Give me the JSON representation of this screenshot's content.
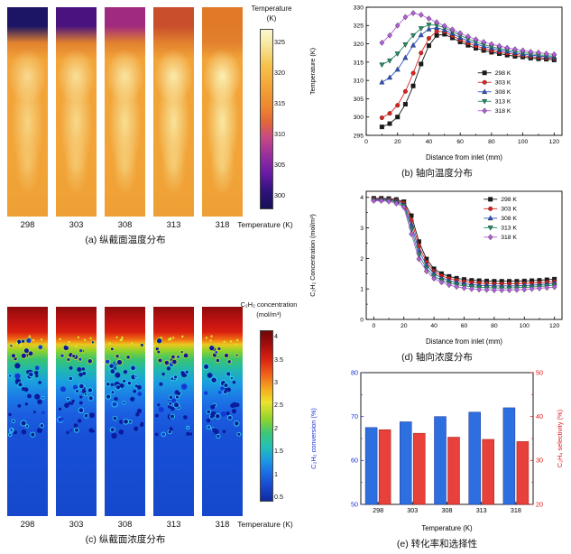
{
  "panel_a": {
    "caption": "(a) 纵截面温度分布",
    "case_labels": [
      "298",
      "303",
      "308",
      "313",
      "318"
    ],
    "bottom_axis_label": "Temperature (K)",
    "case_top_colors": [
      "#1c1464",
      "#4a127e",
      "#a02a7e",
      "#c84e2c",
      "#e07a26"
    ],
    "colorbar": {
      "title_lines": [
        "Temperature",
        "(K)"
      ],
      "tick_labels": [
        "325",
        "320",
        "315",
        "310",
        "305",
        "300"
      ],
      "tick_values": [
        325,
        320,
        315,
        310,
        305,
        300
      ],
      "vmax": 327,
      "vmin": 298
    }
  },
  "panel_c": {
    "caption": "(c) 纵截面浓度分布",
    "case_labels": [
      "298",
      "303",
      "308",
      "313",
      "318"
    ],
    "bottom_axis_label": "Temperature (K)",
    "colorbar": {
      "title_lines": [
        "C₂H₂ concentration",
        "(mol/m³)"
      ],
      "tick_labels": [
        "4",
        "3.5",
        "3",
        "2.5",
        "2",
        "1.5",
        "1",
        "0.5"
      ],
      "tick_values": [
        4,
        3.5,
        3,
        2.5,
        2,
        1.5,
        1,
        0.5
      ],
      "vmax": 4.12,
      "vmin": 0.42
    }
  },
  "chart_data": [
    {
      "id": "b",
      "type": "line",
      "caption": "(b) 轴向温度分布",
      "xlabel": "Distance from inlet (mm)",
      "ylabel": "Temperature (K)",
      "xlim": [
        0,
        125
      ],
      "ylim": [
        295,
        330
      ],
      "xticks": [
        0,
        20,
        40,
        60,
        80,
        100,
        120
      ],
      "xminor": [
        10,
        30,
        50,
        70,
        90,
        110
      ],
      "yticks": [
        295,
        300,
        305,
        310,
        315,
        320,
        325,
        330
      ],
      "legend_pos": [
        0.57,
        0.47
      ],
      "x": [
        10,
        15,
        20,
        25,
        30,
        35,
        40,
        45,
        50,
        55,
        60,
        65,
        70,
        75,
        80,
        85,
        90,
        95,
        100,
        105,
        110,
        115,
        120
      ],
      "series": [
        {
          "name": "298 K",
          "color": "#1a1a1a",
          "marker": "square",
          "values": [
            297.3,
            298.2,
            300.0,
            303.5,
            308.5,
            314.5,
            319.5,
            322.3,
            322.6,
            321.6,
            320.5,
            319.6,
            318.8,
            318.2,
            317.7,
            317.3,
            316.9,
            316.6,
            316.4,
            316.1,
            315.9,
            315.8,
            315.6
          ]
        },
        {
          "name": "303 K",
          "color": "#e0201c",
          "marker": "circle",
          "values": [
            299.8,
            301.0,
            303.2,
            307.0,
            312.0,
            317.5,
            321.5,
            323.4,
            323.3,
            322.2,
            321.1,
            320.2,
            319.4,
            318.8,
            318.2,
            317.8,
            317.4,
            317.1,
            316.8,
            316.5,
            316.3,
            316.1,
            316.0
          ]
        },
        {
          "name": "308 K",
          "color": "#2a52c8",
          "marker": "triangle-up",
          "values": [
            309.5,
            310.8,
            313.0,
            316.2,
            319.6,
            322.4,
            324.0,
            324.4,
            323.8,
            322.8,
            321.7,
            320.8,
            320.0,
            319.3,
            318.8,
            318.3,
            317.9,
            317.5,
            317.2,
            316.9,
            316.7,
            316.5,
            316.3
          ]
        },
        {
          "name": "313 K",
          "color": "#1f8f62",
          "marker": "triangle-down",
          "values": [
            314.3,
            315.4,
            317.3,
            319.8,
            322.3,
            324.2,
            325.2,
            325.1,
            324.4,
            323.4,
            322.3,
            321.4,
            320.5,
            319.8,
            319.2,
            318.7,
            318.3,
            317.9,
            317.6,
            317.3,
            317.0,
            316.8,
            316.6
          ]
        },
        {
          "name": "318 K",
          "color": "#b35fd9",
          "marker": "diamond",
          "values": [
            320.3,
            322.3,
            325.0,
            327.3,
            328.4,
            327.9,
            326.9,
            325.9,
            324.9,
            323.9,
            322.9,
            322.0,
            321.2,
            320.5,
            319.9,
            319.4,
            318.9,
            318.5,
            318.2,
            317.8,
            317.6,
            317.3,
            317.1
          ]
        }
      ]
    },
    {
      "id": "d",
      "type": "line",
      "caption": "(d) 轴向浓度分布",
      "xlabel": "Distance from inlet (mm)",
      "ylabel": "C₂H₂ Concentration (mol/m³)",
      "xlim": [
        -5,
        125
      ],
      "ylim": [
        0,
        4.2
      ],
      "xticks": [
        0,
        20,
        40,
        60,
        80,
        100,
        120
      ],
      "xminor": [
        10,
        30,
        50,
        70,
        90,
        110
      ],
      "yticks": [
        0,
        1,
        2,
        3,
        4
      ],
      "yminor": [
        0.5,
        1.5,
        2.5,
        3.5
      ],
      "legend_pos": [
        0.6,
        0.02
      ],
      "x": [
        0,
        5,
        10,
        15,
        20,
        25,
        30,
        35,
        40,
        45,
        50,
        55,
        60,
        65,
        70,
        75,
        80,
        85,
        90,
        95,
        100,
        105,
        110,
        115,
        120
      ],
      "series": [
        {
          "name": "298 K",
          "color": "#1a1a1a",
          "marker": "square",
          "values": [
            3.97,
            3.97,
            3.96,
            3.93,
            3.86,
            3.4,
            2.55,
            1.98,
            1.66,
            1.5,
            1.41,
            1.35,
            1.31,
            1.28,
            1.27,
            1.26,
            1.25,
            1.25,
            1.25,
            1.25,
            1.26,
            1.27,
            1.28,
            1.3,
            1.32
          ]
        },
        {
          "name": "303 K",
          "color": "#e0201c",
          "marker": "circle",
          "values": [
            3.95,
            3.95,
            3.94,
            3.9,
            3.82,
            3.25,
            2.4,
            1.88,
            1.58,
            1.43,
            1.34,
            1.28,
            1.24,
            1.21,
            1.19,
            1.18,
            1.17,
            1.17,
            1.17,
            1.17,
            1.18,
            1.19,
            1.2,
            1.22,
            1.24
          ]
        },
        {
          "name": "308 K",
          "color": "#2a52c8",
          "marker": "triangle-up",
          "values": [
            3.93,
            3.93,
            3.92,
            3.87,
            3.78,
            3.1,
            2.25,
            1.78,
            1.5,
            1.36,
            1.27,
            1.21,
            1.17,
            1.14,
            1.12,
            1.11,
            1.1,
            1.1,
            1.1,
            1.1,
            1.11,
            1.12,
            1.14,
            1.16,
            1.18
          ]
        },
        {
          "name": "313 K",
          "color": "#1f8f62",
          "marker": "triangle-down",
          "values": [
            3.91,
            3.91,
            3.9,
            3.84,
            3.73,
            2.95,
            2.1,
            1.68,
            1.42,
            1.29,
            1.2,
            1.14,
            1.1,
            1.07,
            1.05,
            1.04,
            1.03,
            1.03,
            1.03,
            1.04,
            1.05,
            1.06,
            1.08,
            1.1,
            1.12
          ]
        },
        {
          "name": "318 K",
          "color": "#b35fd9",
          "marker": "diamond",
          "values": [
            3.89,
            3.89,
            3.87,
            3.8,
            3.68,
            2.8,
            1.98,
            1.58,
            1.34,
            1.22,
            1.13,
            1.07,
            1.03,
            1.0,
            0.98,
            0.97,
            0.96,
            0.96,
            0.96,
            0.97,
            0.98,
            1.0,
            1.02,
            1.04,
            1.06
          ]
        }
      ]
    },
    {
      "id": "e",
      "type": "bar-dual",
      "caption": "(e) 转化率和选择性",
      "xlabel": "Temperature (K)",
      "categories": [
        "298",
        "303",
        "308",
        "313",
        "318"
      ],
      "left": {
        "label": "C₂H₂ conversion (%)",
        "color": "#1b2fd8",
        "bar_color": "#2e6fe0",
        "lim": [
          50,
          80
        ],
        "ticks": [
          50,
          60,
          70,
          80
        ],
        "minor": [
          55,
          65,
          75
        ],
        "values": [
          67.5,
          68.8,
          70.0,
          71.0,
          72.0
        ]
      },
      "right": {
        "label": "C₂H₄ selectivity (%)",
        "color": "#e01818",
        "bar_color": "#e8403a",
        "lim": [
          20,
          50
        ],
        "ticks": [
          20,
          30,
          40,
          50
        ],
        "minor": [
          25,
          35,
          45
        ],
        "values": [
          37.0,
          36.2,
          35.3,
          34.8,
          34.3
        ]
      }
    }
  ]
}
